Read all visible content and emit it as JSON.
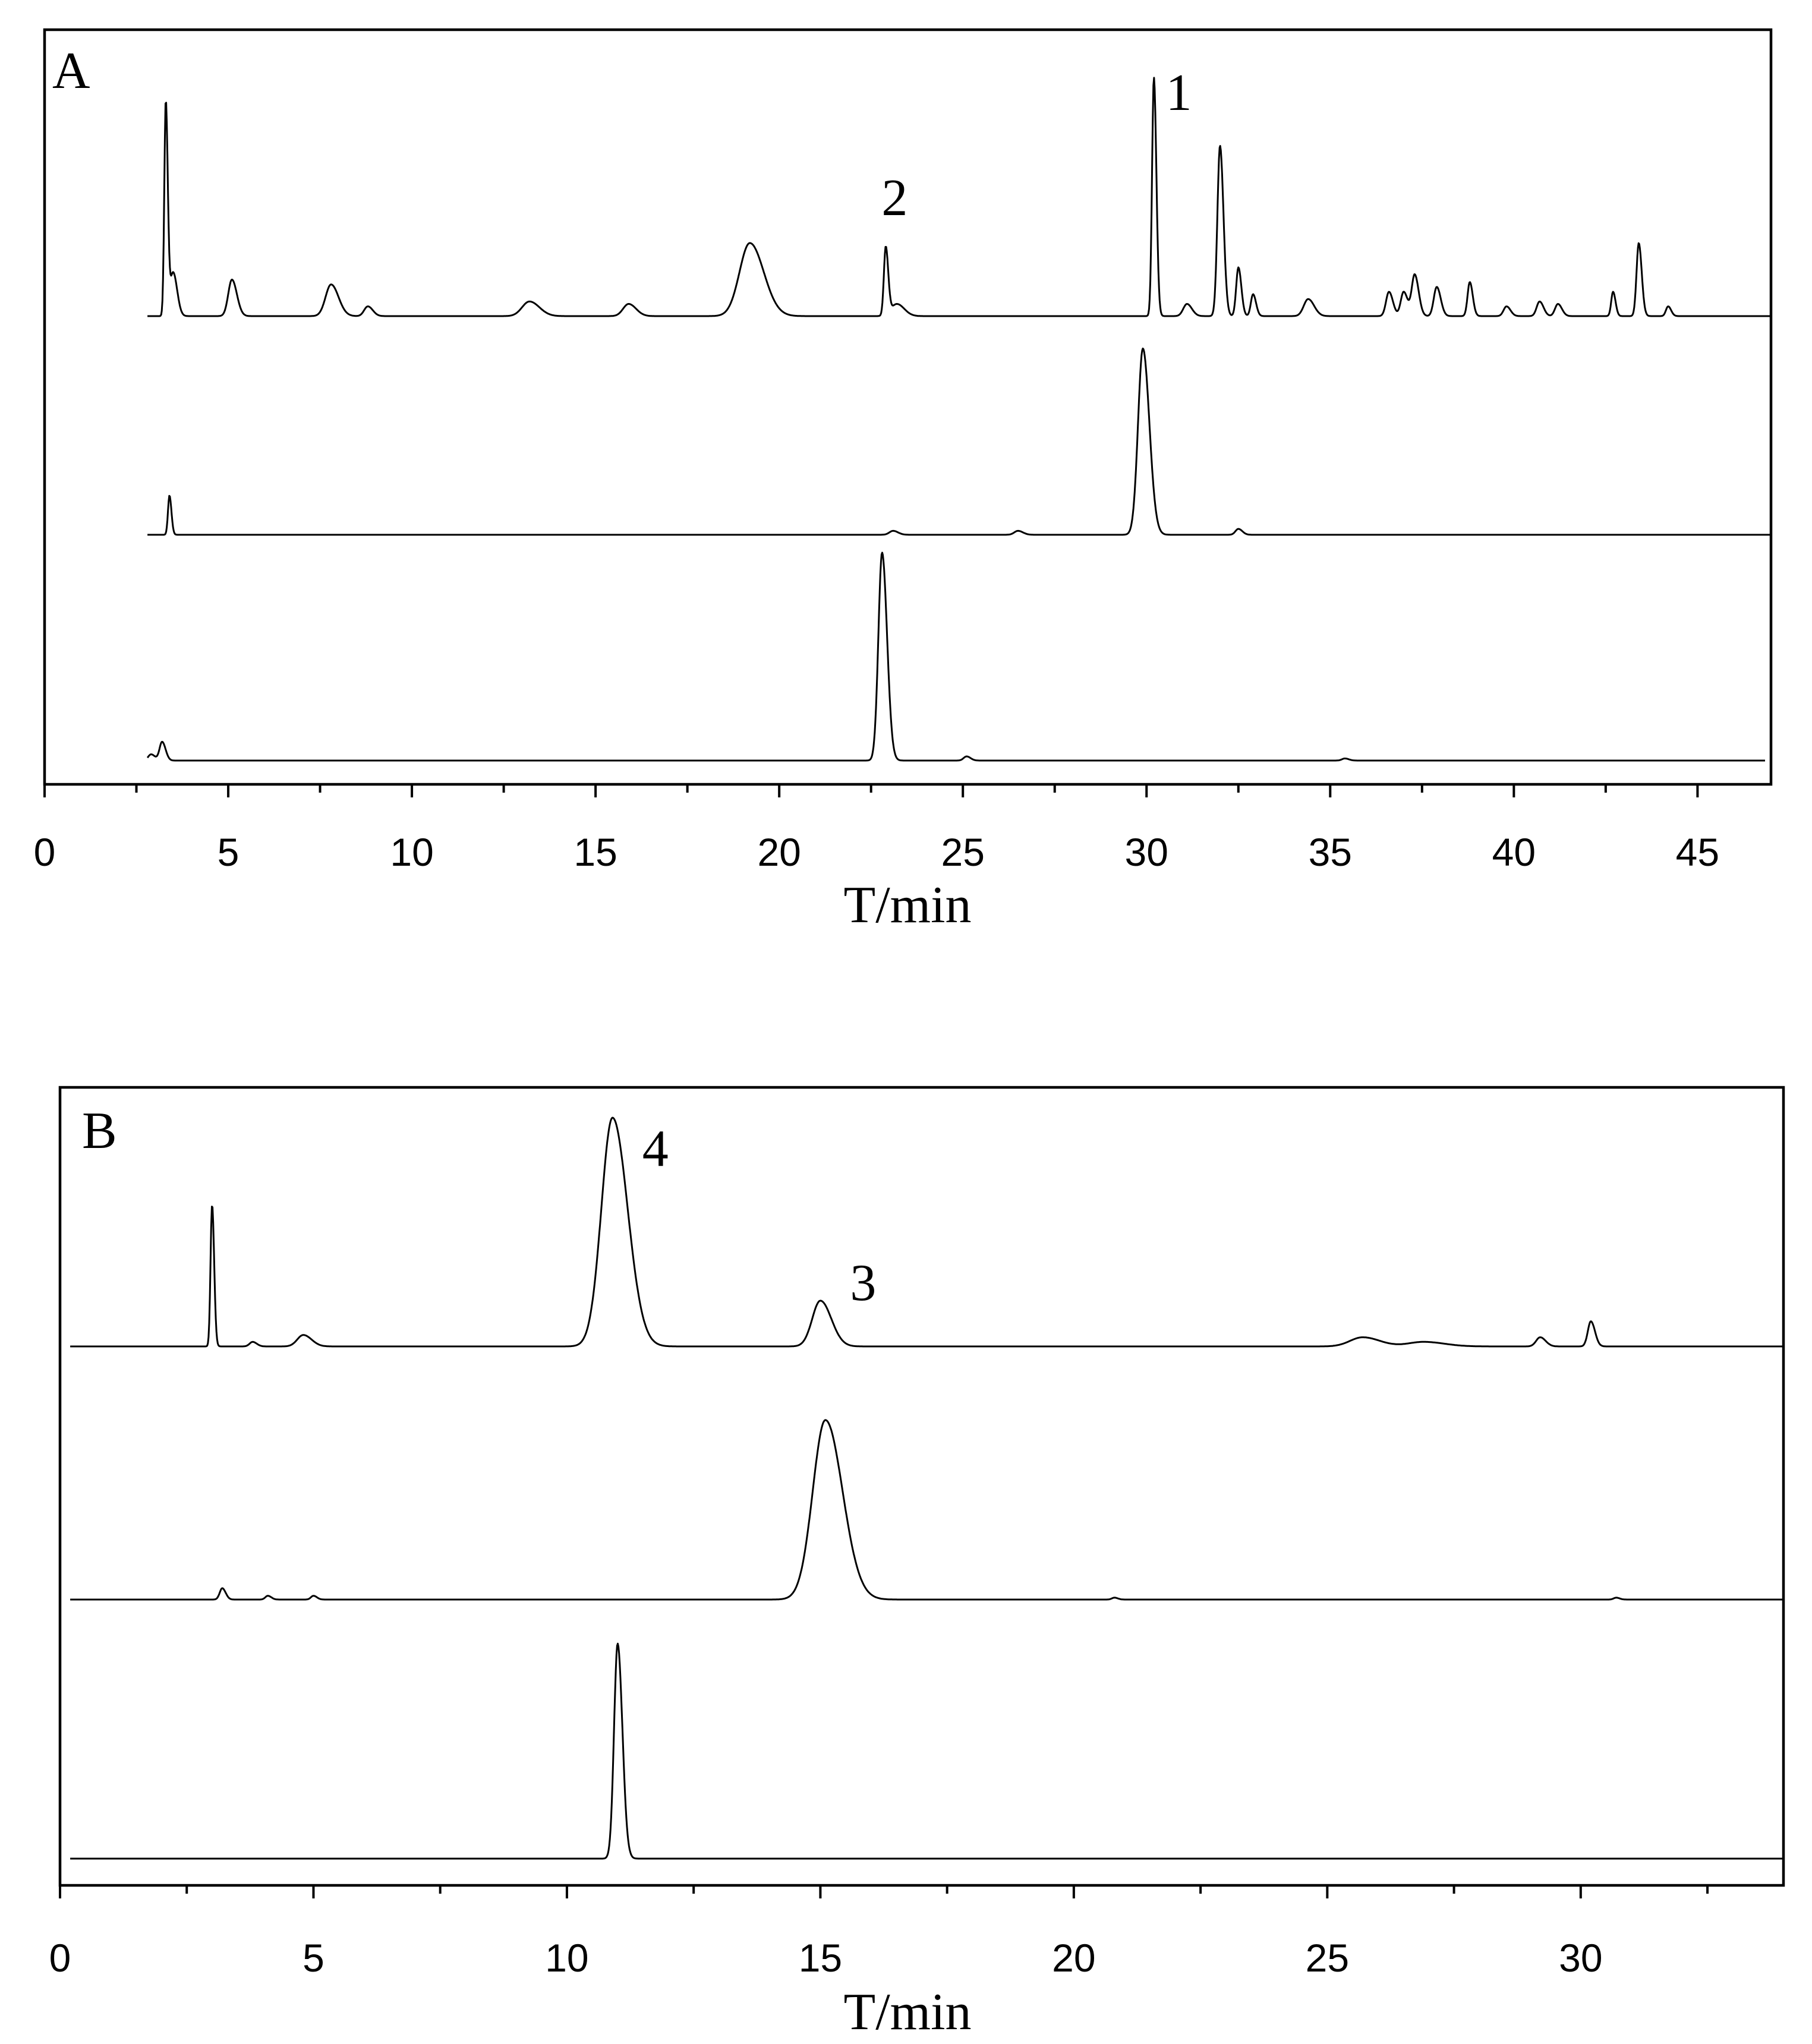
{
  "chart_data": [
    {
      "type": "line",
      "panel_label": "A",
      "xlabel": "T/min",
      "ylabel": "",
      "xlim": [
        0,
        47
      ],
      "x_ticks": [
        0,
        5,
        10,
        15,
        20,
        25,
        30,
        35,
        40,
        45
      ],
      "y_ticks_shown": false,
      "grid": false,
      "legend": "none",
      "series": [
        {
          "peaks": [
            {
              "t": 3.3,
              "h": 0.88,
              "w": 0.04
            },
            {
              "t": 3.5,
              "h": 0.18,
              "w": 0.08
            },
            {
              "t": 5.1,
              "h": 0.15,
              "w": 0.1
            },
            {
              "t": 7.8,
              "h": 0.13,
              "w": 0.15
            },
            {
              "t": 8.8,
              "h": 0.04,
              "w": 0.1
            },
            {
              "t": 13.2,
              "h": 0.06,
              "w": 0.2
            },
            {
              "t": 15.9,
              "h": 0.05,
              "w": 0.15
            },
            {
              "t": 19.2,
              "h": 0.3,
              "w": 0.28
            },
            {
              "t": 22.9,
              "h": 0.28,
              "w": 0.05
            },
            {
              "t": 23.2,
              "h": 0.05,
              "w": 0.15
            },
            {
              "t": 30.2,
              "h": 0.98,
              "w": 0.05
            },
            {
              "t": 31.1,
              "h": 0.05,
              "w": 0.1
            },
            {
              "t": 32.0,
              "h": 0.7,
              "w": 0.07
            },
            {
              "t": 32.5,
              "h": 0.2,
              "w": 0.06
            },
            {
              "t": 32.9,
              "h": 0.09,
              "w": 0.06
            },
            {
              "t": 34.4,
              "h": 0.07,
              "w": 0.12
            },
            {
              "t": 36.6,
              "h": 0.1,
              "w": 0.08
            },
            {
              "t": 37.0,
              "h": 0.1,
              "w": 0.08
            },
            {
              "t": 37.3,
              "h": 0.17,
              "w": 0.08
            },
            {
              "t": 37.9,
              "h": 0.12,
              "w": 0.08
            },
            {
              "t": 38.8,
              "h": 0.14,
              "w": 0.06
            },
            {
              "t": 39.8,
              "h": 0.04,
              "w": 0.08
            },
            {
              "t": 40.7,
              "h": 0.06,
              "w": 0.08
            },
            {
              "t": 41.2,
              "h": 0.05,
              "w": 0.08
            },
            {
              "t": 42.7,
              "h": 0.1,
              "w": 0.05
            },
            {
              "t": 43.4,
              "h": 0.3,
              "w": 0.06
            },
            {
              "t": 44.2,
              "h": 0.04,
              "w": 0.06
            }
          ]
        },
        {
          "peaks": [
            {
              "t": 3.4,
              "h": 0.2,
              "w": 0.04
            },
            {
              "t": 23.1,
              "h": 0.02,
              "w": 0.1
            },
            {
              "t": 26.5,
              "h": 0.02,
              "w": 0.1
            },
            {
              "t": 29.9,
              "h": 0.95,
              "w": 0.13
            },
            {
              "t": 32.5,
              "h": 0.03,
              "w": 0.08
            }
          ]
        },
        {
          "peaks": [
            {
              "t": 2.9,
              "h": 0.03,
              "w": 0.08
            },
            {
              "t": 3.2,
              "h": 0.09,
              "w": 0.07
            },
            {
              "t": 22.8,
              "h": 1.0,
              "w": 0.1
            },
            {
              "t": 25.1,
              "h": 0.02,
              "w": 0.08
            },
            {
              "t": 35.4,
              "h": 0.01,
              "w": 0.08
            }
          ]
        }
      ],
      "annotations": [
        {
          "text": "1",
          "x": 30.2
        },
        {
          "text": "2",
          "x": 22.9
        }
      ]
    },
    {
      "type": "line",
      "panel_label": "B",
      "xlabel": "T/min",
      "ylabel": "",
      "xlim": [
        0,
        34
      ],
      "x_ticks": [
        0,
        5,
        10,
        15,
        20,
        25,
        30
      ],
      "y_ticks_shown": false,
      "grid": false,
      "legend": "none",
      "series": [
        {
          "peaks": [
            {
              "t": 3.0,
              "h": 0.62,
              "w": 0.03
            },
            {
              "t": 3.8,
              "h": 0.02,
              "w": 0.06
            },
            {
              "t": 4.8,
              "h": 0.05,
              "w": 0.12
            },
            {
              "t": 10.9,
              "h": 1.0,
              "w": 0.22
            },
            {
              "t": 15.0,
              "h": 0.2,
              "w": 0.16
            },
            {
              "t": 25.7,
              "h": 0.04,
              "w": 0.25
            },
            {
              "t": 26.9,
              "h": 0.02,
              "w": 0.3
            },
            {
              "t": 29.2,
              "h": 0.04,
              "w": 0.08
            },
            {
              "t": 30.2,
              "h": 0.11,
              "w": 0.06
            }
          ]
        },
        {
          "peaks": [
            {
              "t": 3.2,
              "h": 0.06,
              "w": 0.05
            },
            {
              "t": 4.1,
              "h": 0.02,
              "w": 0.05
            },
            {
              "t": 5.0,
              "h": 0.02,
              "w": 0.05
            },
            {
              "t": 15.1,
              "h": 0.95,
              "w": 0.25
            },
            {
              "t": 20.8,
              "h": 0.01,
              "w": 0.05
            },
            {
              "t": 30.7,
              "h": 0.01,
              "w": 0.05
            }
          ]
        },
        {
          "peaks": [
            {
              "t": 11.0,
              "h": 1.0,
              "w": 0.07
            }
          ]
        }
      ],
      "annotations": [
        {
          "text": "4",
          "x": 10.9
        },
        {
          "text": "3",
          "x": 15.0
        }
      ]
    }
  ]
}
